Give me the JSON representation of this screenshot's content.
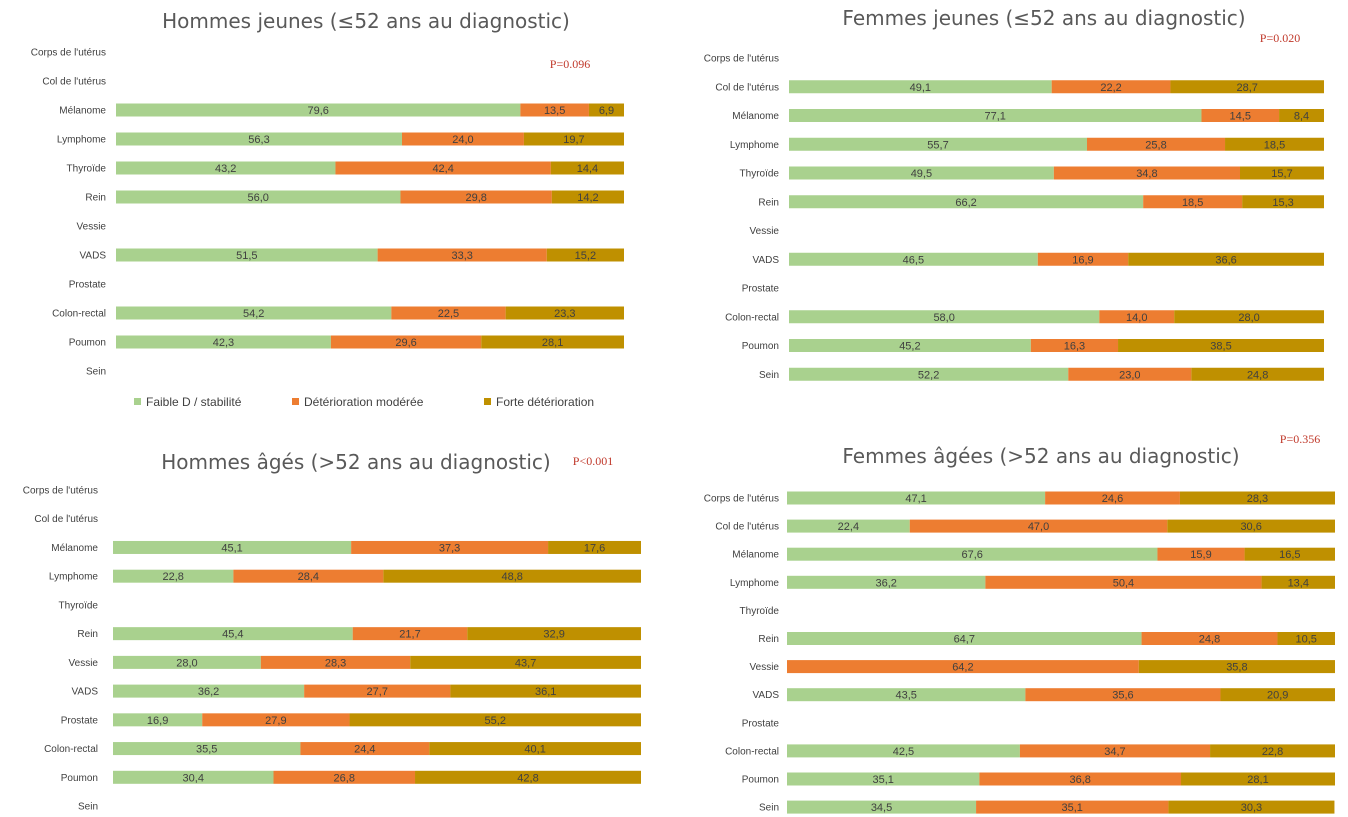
{
  "legend": {
    "items": [
      {
        "label": "Faible D / stabilité",
        "color": "#a9d18e"
      },
      {
        "label": "Détérioration modérée",
        "color": "#ed7d31"
      },
      {
        "label": "Forte détérioration",
        "color": "#bf9000"
      }
    ]
  },
  "chart_data": [
    {
      "type": "bar",
      "orientation": "horizontal",
      "stacked": true,
      "title": "Hommes jeunes (≤52 ans au diagnostic)",
      "p_value": "P=0.096",
      "xlim": [
        0,
        100
      ],
      "grid": false,
      "legend_position": "bottom",
      "categories": [
        "Corps de l'utérus",
        "Col de l'utérus",
        "Mélanome",
        "Lymphome",
        "Thyroïde",
        "Rein",
        "Vessie",
        "VADS",
        "Prostate",
        "Colon-rectal",
        "Poumon",
        "Sein"
      ],
      "series": [
        {
          "name": "Faible D / stabilité",
          "values": [
            null,
            null,
            79.6,
            56.3,
            43.2,
            56.0,
            null,
            51.5,
            null,
            54.2,
            42.3,
            null
          ],
          "labels": [
            "",
            "",
            "79,6",
            "56,3",
            "43,2",
            "56,0",
            "",
            "51,5",
            "",
            "54,2",
            "42,3",
            ""
          ]
        },
        {
          "name": "Détérioration modérée",
          "values": [
            null,
            null,
            13.5,
            24.0,
            42.4,
            29.8,
            null,
            33.3,
            null,
            22.5,
            29.6,
            null
          ],
          "labels": [
            "",
            "",
            "13,5",
            "24,0",
            "42,4",
            "29,8",
            "",
            "33,3",
            "",
            "22,5",
            "29,6",
            ""
          ]
        },
        {
          "name": "Forte détérioration",
          "values": [
            null,
            null,
            6.9,
            19.7,
            14.4,
            14.2,
            null,
            15.2,
            null,
            23.3,
            28.1,
            null
          ],
          "labels": [
            "",
            "",
            "6,9",
            "19,7",
            "14,4",
            "14,2",
            "",
            "15,2",
            "",
            "23,3",
            "28,1",
            ""
          ]
        }
      ]
    },
    {
      "type": "bar",
      "orientation": "horizontal",
      "stacked": true,
      "title": "Femmes jeunes (≤52 ans au diagnostic)",
      "p_value": "P=0.020",
      "xlim": [
        0,
        100
      ],
      "grid": false,
      "legend_position": "none",
      "categories": [
        "Corps de l'utérus",
        "Col de l'utérus",
        "Mélanome",
        "Lymphome",
        "Thyroïde",
        "Rein",
        "Vessie",
        "VADS",
        "Prostate",
        "Colon-rectal",
        "Poumon",
        "Sein"
      ],
      "series": [
        {
          "name": "Faible D / stabilité",
          "values": [
            null,
            49.1,
            77.1,
            55.7,
            49.5,
            66.2,
            null,
            46.5,
            null,
            58.0,
            45.2,
            52.2
          ],
          "labels": [
            "",
            "49,1",
            "77,1",
            "55,7",
            "49,5",
            "66,2",
            "",
            "46,5",
            "",
            "58,0",
            "45,2",
            "52,2"
          ]
        },
        {
          "name": "Détérioration modérée",
          "values": [
            null,
            22.2,
            14.5,
            25.8,
            34.8,
            18.5,
            null,
            16.9,
            null,
            14.0,
            16.3,
            23.0
          ],
          "labels": [
            "",
            "22,2",
            "14,5",
            "25,8",
            "34,8",
            "18,5",
            "",
            "16,9",
            "",
            "14,0",
            "16,3",
            "23,0"
          ]
        },
        {
          "name": "Forte détérioration",
          "values": [
            null,
            28.7,
            8.4,
            18.5,
            15.7,
            15.3,
            null,
            36.6,
            null,
            28.0,
            38.5,
            24.8
          ],
          "labels": [
            "",
            "28,7",
            "8,4",
            "18,5",
            "15,7",
            "15,3",
            "",
            "36,6",
            "",
            "28,0",
            "38,5",
            "24,8"
          ]
        }
      ]
    },
    {
      "type": "bar",
      "orientation": "horizontal",
      "stacked": true,
      "title": "Hommes âgés (>52 ans au diagnostic)",
      "p_value": "P<0.001",
      "xlim": [
        0,
        100
      ],
      "grid": false,
      "legend_position": "none",
      "categories": [
        "Corps de l'utérus",
        "Col de l'utérus",
        "Mélanome",
        "Lymphome",
        "Thyroïde",
        "Rein",
        "Vessie",
        "VADS",
        "Prostate",
        "Colon-rectal",
        "Poumon",
        "Sein"
      ],
      "series": [
        {
          "name": "Faible D / stabilité",
          "values": [
            null,
            null,
            45.1,
            22.8,
            null,
            45.4,
            28.0,
            36.2,
            16.9,
            35.5,
            30.4,
            null
          ],
          "labels": [
            "",
            "",
            "45,1",
            "22,8",
            "",
            "45,4",
            "28,0",
            "36,2",
            "16,9",
            "35,5",
            "30,4",
            ""
          ]
        },
        {
          "name": "Détérioration modérée",
          "values": [
            null,
            null,
            37.3,
            28.4,
            null,
            21.7,
            28.3,
            27.7,
            27.9,
            24.4,
            26.8,
            null
          ],
          "labels": [
            "",
            "",
            "37,3",
            "28,4",
            "",
            "21,7",
            "28,3",
            "27,7",
            "27,9",
            "24,4",
            "26,8",
            ""
          ]
        },
        {
          "name": "Forte détérioration",
          "values": [
            null,
            null,
            17.6,
            48.8,
            null,
            32.9,
            43.7,
            36.1,
            55.2,
            40.1,
            42.8,
            null
          ],
          "labels": [
            "",
            "",
            "17,6",
            "48,8",
            "",
            "32,9",
            "43,7",
            "36,1",
            "55,2",
            "40,1",
            "42,8",
            ""
          ]
        }
      ]
    },
    {
      "type": "bar",
      "orientation": "horizontal",
      "stacked": true,
      "title": "Femmes âgées (>52 ans au diagnostic)",
      "p_value": "P=0.356",
      "xlim": [
        0,
        100
      ],
      "grid": false,
      "legend_position": "none",
      "categories": [
        "Corps de l'utérus",
        "Col de l'utérus",
        "Mélanome",
        "Lymphome",
        "Thyroïde",
        "Rein",
        "Vessie",
        "VADS",
        "Prostate",
        "Colon-rectal",
        "Poumon",
        "Sein"
      ],
      "series": [
        {
          "name": "Faible D / stabilité",
          "values": [
            47.1,
            22.4,
            67.6,
            36.2,
            null,
            64.7,
            null,
            43.5,
            null,
            42.5,
            35.1,
            34.5
          ],
          "labels": [
            "47,1",
            "22,4",
            "67,6",
            "36,2",
            "",
            "64,7",
            "",
            "43,5",
            "",
            "42,5",
            "35,1",
            "34,5"
          ]
        },
        {
          "name": "Détérioration modérée",
          "values": [
            24.6,
            47.0,
            15.9,
            50.4,
            null,
            24.8,
            64.2,
            35.6,
            null,
            34.7,
            36.8,
            35.1
          ],
          "labels": [
            "24,6",
            "47,0",
            "15,9",
            "50,4",
            "",
            "24,8",
            "64,2",
            "35,6",
            "",
            "34,7",
            "36,8",
            "35,1"
          ]
        },
        {
          "name": "Forte détérioration",
          "values": [
            28.3,
            30.6,
            16.5,
            13.4,
            null,
            10.5,
            35.8,
            20.9,
            null,
            22.8,
            28.1,
            30.3
          ],
          "labels": [
            "28,3",
            "30,6",
            "16,5",
            "13,4",
            "",
            "10,5",
            "35,8",
            "20,9",
            "",
            "22,8",
            "28,1",
            "30,3"
          ]
        }
      ]
    }
  ]
}
